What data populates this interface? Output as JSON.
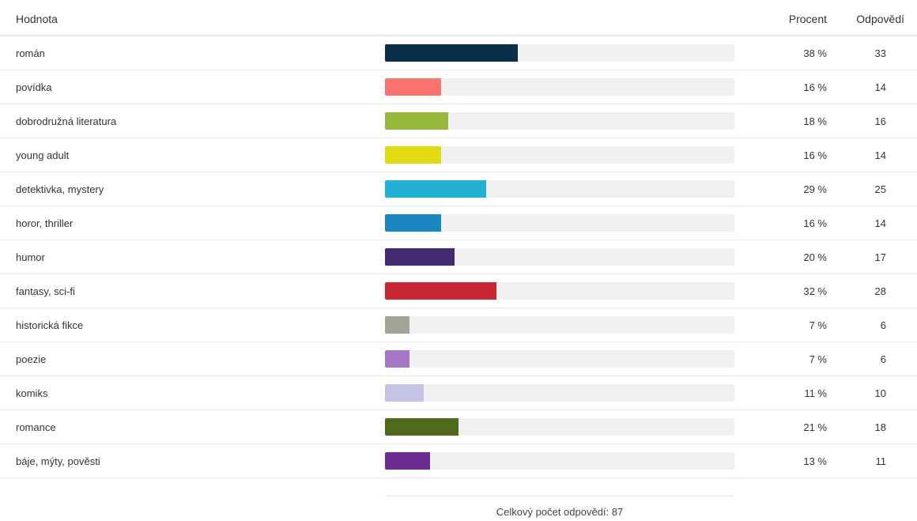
{
  "chart_data": {
    "type": "bar",
    "orientation": "horizontal",
    "header": {
      "value_label": "Hodnota",
      "percent_label": "Procent",
      "answers_label": "Odpovědí"
    },
    "xlim": [
      0,
      100
    ],
    "rows": [
      {
        "label": "román",
        "percent_text": "38 %",
        "count": "33",
        "value": 38,
        "color": "#0a3049"
      },
      {
        "label": "povídka",
        "percent_text": "16 %",
        "count": "14",
        "value": 16,
        "color": "#f9736f"
      },
      {
        "label": "dobrodružná literatura",
        "percent_text": "18 %",
        "count": "16",
        "value": 18,
        "color": "#96b83d"
      },
      {
        "label": "young adult",
        "percent_text": "16 %",
        "count": "14",
        "value": 16,
        "color": "#dfdb10"
      },
      {
        "label": "detektivka, mystery",
        "percent_text": "29 %",
        "count": "25",
        "value": 29,
        "color": "#22b1d5"
      },
      {
        "label": "horor, thriller",
        "percent_text": "16 %",
        "count": "14",
        "value": 16,
        "color": "#1a86c0"
      },
      {
        "label": "humor",
        "percent_text": "20 %",
        "count": "17",
        "value": 20,
        "color": "#442a6f"
      },
      {
        "label": "fantasy, sci-fi",
        "percent_text": "32 %",
        "count": "28",
        "value": 32,
        "color": "#c52630"
      },
      {
        "label": "historická fikce",
        "percent_text": "7 %",
        "count": "6",
        "value": 7,
        "color": "#a3a396"
      },
      {
        "label": "poezie",
        "percent_text": "7 %",
        "count": "6",
        "value": 7,
        "color": "#a477c4"
      },
      {
        "label": "komiks",
        "percent_text": "11 %",
        "count": "10",
        "value": 11,
        "color": "#c3c3e4"
      },
      {
        "label": "romance",
        "percent_text": "21 %",
        "count": "18",
        "value": 21,
        "color": "#4e6b1b"
      },
      {
        "label": "báje, mýty, pověsti",
        "percent_text": "13 %",
        "count": "11",
        "value": 13,
        "color": "#6c2c92"
      }
    ],
    "total_text": "Celkový počet odpovědí: 87",
    "grid": false,
    "legend": "none"
  }
}
